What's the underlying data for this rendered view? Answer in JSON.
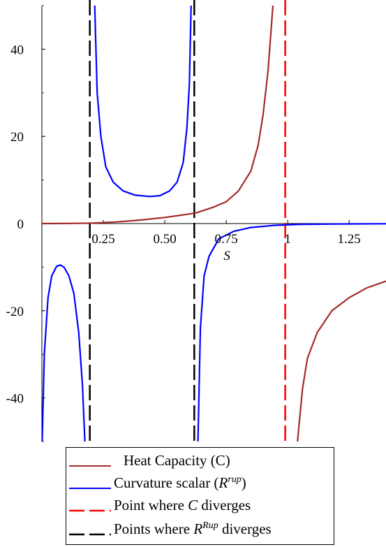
{
  "chart_data": {
    "type": "line",
    "xlabel": "S",
    "ylabel": "",
    "xlim": [
      0,
      1.4
    ],
    "ylim": [
      -50,
      50
    ],
    "x_ticks": [
      {
        "value": 0.25,
        "label": "0.25"
      },
      {
        "value": 0.5,
        "label": "0.50"
      },
      {
        "value": 0.75,
        "label": "0.75"
      },
      {
        "value": 1.0,
        "label": "1"
      },
      {
        "value": 1.25,
        "label": "1.25"
      }
    ],
    "y_ticks": [
      {
        "value": 40,
        "label": "40"
      },
      {
        "value": 20,
        "label": "20"
      },
      {
        "value": 0,
        "label": "0"
      },
      {
        "value": -20,
        "label": "-20"
      },
      {
        "value": -40,
        "label": "-40"
      }
    ],
    "colors": {
      "heat_capacity": "#a52a2a",
      "curvature": "#0000ff",
      "c_diverges": "#ff0000",
      "r_diverges": "#000000"
    },
    "series": [
      {
        "name": "Heat Capacity (C)",
        "style": "solid",
        "color": "#a52a2a",
        "segments": [
          [
            [
              0.0,
              0.0
            ],
            [
              0.1,
              0.02
            ],
            [
              0.2,
              0.1
            ],
            [
              0.3,
              0.35
            ],
            [
              0.4,
              0.8
            ],
            [
              0.5,
              1.4
            ],
            [
              0.6,
              2.2
            ],
            [
              0.63,
              2.5
            ],
            [
              0.7,
              3.8
            ],
            [
              0.75,
              5.0
            ],
            [
              0.8,
              7.5
            ],
            [
              0.85,
              12.0
            ],
            [
              0.88,
              18.0
            ],
            [
              0.9,
              25.0
            ],
            [
              0.92,
              35.0
            ],
            [
              0.94,
              50.0
            ]
          ],
          [
            [
              1.04,
              -50.0
            ],
            [
              1.06,
              -38.0
            ],
            [
              1.08,
              -31.0
            ],
            [
              1.12,
              -25.0
            ],
            [
              1.18,
              -20.0
            ],
            [
              1.25,
              -17.0
            ],
            [
              1.32,
              -14.8
            ],
            [
              1.4,
              -13.2
            ]
          ]
        ]
      },
      {
        "name": "Curvature scalar (R^rup)",
        "style": "solid",
        "color": "#0000ff",
        "segments": [
          [
            [
              0.001,
              -50.0
            ],
            [
              0.01,
              -30.0
            ],
            [
              0.025,
              -17.0
            ],
            [
              0.04,
              -12.0
            ],
            [
              0.06,
              -9.8
            ],
            [
              0.075,
              -9.5
            ],
            [
              0.09,
              -10.0
            ],
            [
              0.11,
              -12.0
            ],
            [
              0.13,
              -16.0
            ],
            [
              0.15,
              -25.0
            ],
            [
              0.165,
              -37.0
            ],
            [
              0.175,
              -50.0
            ]
          ],
          [
            [
              0.215,
              50.0
            ],
            [
              0.225,
              30.0
            ],
            [
              0.24,
              20.0
            ],
            [
              0.26,
              13.0
            ],
            [
              0.29,
              9.5
            ],
            [
              0.33,
              7.5
            ],
            [
              0.38,
              6.5
            ],
            [
              0.44,
              6.2
            ],
            [
              0.48,
              6.4
            ],
            [
              0.52,
              7.5
            ],
            [
              0.55,
              9.5
            ],
            [
              0.575,
              14.0
            ],
            [
              0.59,
              22.0
            ],
            [
              0.6,
              32.0
            ],
            [
              0.607,
              50.0
            ]
          ],
          [
            [
              0.635,
              -50.0
            ],
            [
              0.645,
              -24.0
            ],
            [
              0.66,
              -12.0
            ],
            [
              0.68,
              -7.5
            ],
            [
              0.72,
              -3.5
            ],
            [
              0.78,
              -1.8
            ],
            [
              0.85,
              -0.9
            ],
            [
              0.95,
              -0.4
            ],
            [
              1.05,
              -0.2
            ],
            [
              1.2,
              -0.1
            ],
            [
              1.4,
              -0.05
            ]
          ]
        ]
      },
      {
        "name": "Point where C diverges",
        "style": "dashed",
        "color": "#ff0000",
        "vline_x": 0.99
      },
      {
        "name": "Points where R^Rup diverges",
        "style": "dashed",
        "color": "#000000",
        "vline_x": [
          0.195,
          0.62
        ]
      }
    ]
  },
  "legend": {
    "items": [
      {
        "label": "Heat Capacity (C)"
      },
      {
        "prefix": "Curvature scalar (",
        "var": "R",
        "sup": "rup",
        "suffix": ")"
      },
      {
        "prefix": "Point where ",
        "var": "C",
        "suffix": " diverges"
      },
      {
        "prefix": "Points where  ",
        "var": "R",
        "sup": "Rup",
        "suffix": " diverges"
      }
    ]
  }
}
